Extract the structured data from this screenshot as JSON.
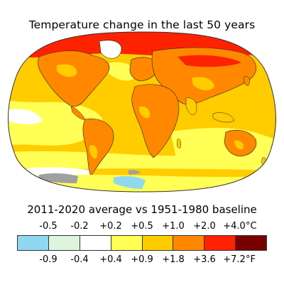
{
  "title": "Temperature change in the last 50 years",
  "subtitle": "2011-2020 average vs 1951-1980 baseline",
  "legend": {
    "colors": [
      "#8fd8f0",
      "#ddf5dd",
      "#ffffff",
      "#ffff55",
      "#ffcc00",
      "#ff8800",
      "#ff2200",
      "#770000"
    ],
    "celsius_labels": [
      "-0.5",
      "-0.2",
      "+0.2",
      "+0.5",
      "+1.0",
      "+2.0",
      "+4.0"
    ],
    "celsius_unit": "°C",
    "fahrenheit_labels": [
      "-0.9",
      "-0.4",
      "+0.4",
      "+0.9",
      "+1.8",
      "+3.6",
      "+7.2"
    ],
    "fahrenheit_unit": "°F"
  },
  "map": {
    "projection": "Robinson-style world map",
    "no_data_color": "#a0a0a0",
    "ocean_base_color": "#ffcc00",
    "land_base_color": "#ff8800",
    "arctic_color": "#ff2200"
  }
}
